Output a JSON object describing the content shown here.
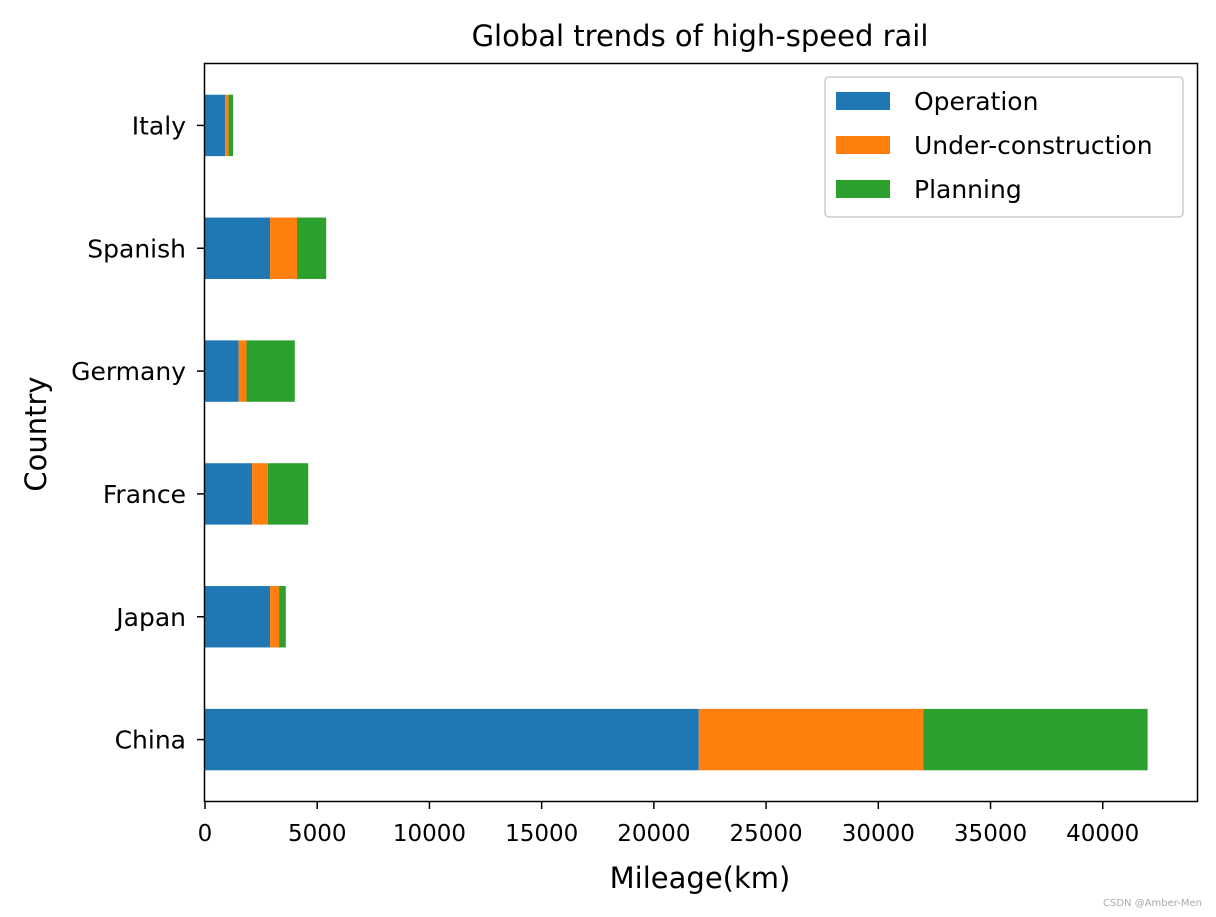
{
  "chart_data": {
    "type": "bar",
    "orientation": "horizontal",
    "stacked": true,
    "title": "Global trends of high-speed rail",
    "xlabel": "Mileage(km)",
    "ylabel": "Country",
    "categories": [
      "China",
      "Japan",
      "France",
      "Germany",
      "Spanish",
      "Italy"
    ],
    "series": [
      {
        "name": "Operation",
        "color": "#1f77b4",
        "values": [
          22000,
          2900,
          2100,
          1500,
          2900,
          900
        ]
      },
      {
        "name": "Under-construction",
        "color": "#ff7f0e",
        "values": [
          10000,
          400,
          700,
          350,
          1200,
          150
        ]
      },
      {
        "name": "Planning",
        "color": "#2ca02c",
        "values": [
          10000,
          300,
          1800,
          2150,
          1300,
          200
        ]
      }
    ],
    "xlim": [
      0,
      44200
    ],
    "xticks": [
      0,
      5000,
      10000,
      15000,
      20000,
      25000,
      30000,
      35000,
      40000
    ],
    "xtick_labels": [
      "0",
      "5000",
      "10000",
      "15000",
      "20000",
      "25000",
      "30000",
      "35000",
      "40000"
    ],
    "legend_position": "top-right",
    "grid": false
  },
  "watermark": "CSDN @Amber-Men"
}
